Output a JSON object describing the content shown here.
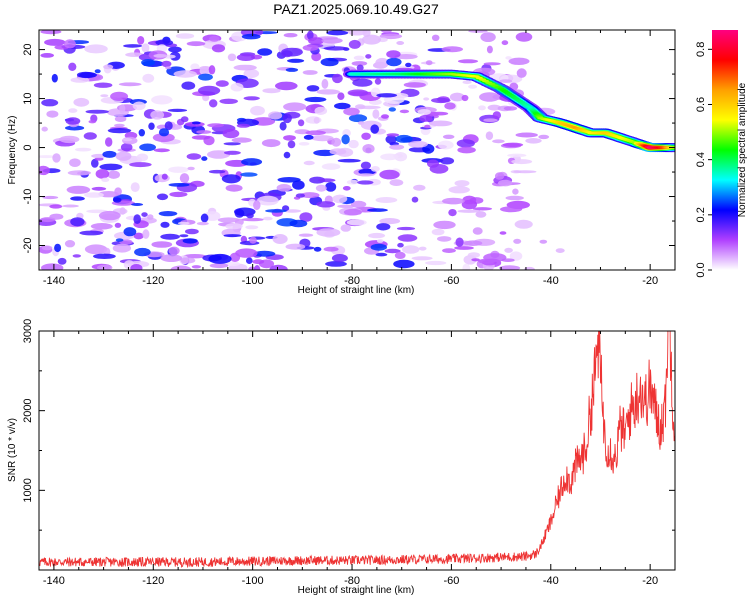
{
  "title": "PAZ1.2025.069.10.49.G27",
  "chart_data": [
    {
      "type": "heatmap",
      "title": "PAZ1.2025.069.10.49.G27",
      "xlabel": "Height of straight line (km)",
      "ylabel": "Frequency (Hz)",
      "xlim": [
        -143,
        -15
      ],
      "ylim": [
        -25,
        24
      ],
      "xticks": [
        -140,
        -120,
        -100,
        -80,
        -60,
        -40,
        -20
      ],
      "yticks": [
        -20,
        -10,
        0,
        10,
        20
      ],
      "colorbar": {
        "label": "Normalized spectral amplitude",
        "range": [
          0.0,
          0.87
        ],
        "ticks": [
          0.0,
          0.2,
          0.4,
          0.6,
          0.8
        ],
        "colormap": [
          "#ff0080",
          "#ff0000",
          "#ffa000",
          "#ffff00",
          "#00ff00",
          "#00ffff",
          "#0000ff",
          "#b040ff",
          "#ffffff"
        ]
      },
      "ridge": {
        "x": [
          -80,
          -75,
          -70,
          -65,
          -60,
          -55,
          -50,
          -47,
          -44,
          -42,
          -38,
          -35,
          -32,
          -29,
          -26,
          -23,
          -20,
          -17,
          -15
        ],
        "y": [
          15,
          15,
          15,
          15,
          15,
          14.5,
          12,
          10,
          8,
          6,
          5,
          4,
          3,
          3,
          2,
          1,
          0,
          0,
          0
        ],
        "amplitude": [
          0.35,
          0.38,
          0.4,
          0.45,
          0.5,
          0.55,
          0.45,
          0.4,
          0.35,
          0.5,
          0.6,
          0.65,
          0.55,
          0.6,
          0.55,
          0.5,
          0.87,
          0.7,
          0.5
        ]
      },
      "background_noise": {
        "x_range": [
          -143,
          -45
        ],
        "y_range": [
          -25,
          24
        ],
        "amplitude_range": [
          0.0,
          0.25
        ]
      }
    },
    {
      "type": "line",
      "xlabel": "Height of straight line (km)",
      "ylabel": "SNR (10 * v/v)",
      "xlim": [
        -143,
        -15
      ],
      "ylim": [
        0,
        3000
      ],
      "xticks": [
        -140,
        -120,
        -100,
        -80,
        -60,
        -40,
        -20
      ],
      "yticks": [
        1000,
        2000,
        3000
      ],
      "color": "#ee3333",
      "series": [
        {
          "x": [
            -143,
            -130,
            -120,
            -110,
            -100,
            -90,
            -80,
            -70,
            -60,
            -55,
            -50,
            -45,
            -43,
            -42,
            -41,
            -40,
            -39,
            -38,
            -37,
            -36,
            -35,
            -34,
            -33,
            -32,
            -31,
            -30.5,
            -30,
            -29.5,
            -29,
            -28,
            -27,
            -26,
            -25,
            -24,
            -23,
            -22,
            -21,
            -20,
            -19,
            -18,
            -17,
            -16.5,
            -16,
            -15.5,
            -15
          ],
          "y": [
            100,
            100,
            100,
            100,
            110,
            120,
            120,
            130,
            140,
            150,
            160,
            170,
            200,
            300,
            450,
            600,
            800,
            1000,
            1200,
            1100,
            1300,
            1400,
            1500,
            2000,
            2500,
            2900,
            2500,
            2000,
            1600,
            1500,
            1400,
            1800,
            1700,
            2000,
            2100,
            2300,
            2100,
            2300,
            2000,
            1800,
            2000,
            2900,
            3000,
            2200,
            1700
          ]
        }
      ]
    }
  ]
}
